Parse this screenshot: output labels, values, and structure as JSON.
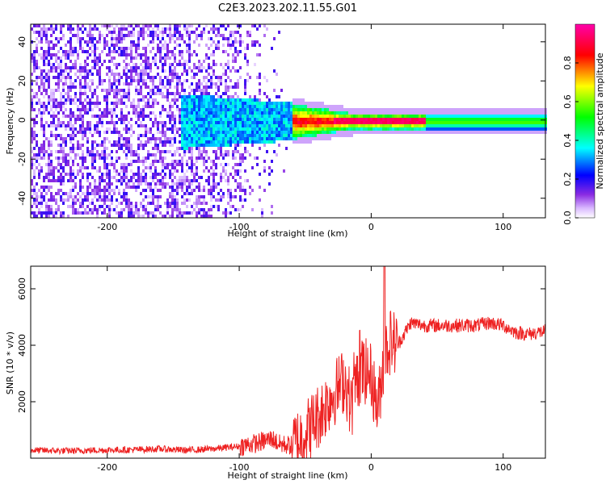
{
  "title": "C2E3.2023.202.11.55.G01",
  "chart_data": [
    {
      "type": "heatmap",
      "xlabel": "Height of straight line (km)",
      "ylabel": "Frequency (Hz)",
      "xlim": [
        -258,
        132
      ],
      "ylim": [
        -50,
        49
      ],
      "xticks": [
        -200,
        -100,
        0,
        100
      ],
      "yticks": [
        -40,
        -20,
        0,
        20,
        40
      ],
      "colorbar": {
        "label": "Normalized spectral amplitude",
        "range": [
          0,
          1
        ],
        "ticks": [
          0.0,
          0.2,
          0.4,
          0.6,
          0.8
        ],
        "colors": [
          "#ffffff",
          "#8a2be2",
          "#0000ff",
          "#00ffff",
          "#00ff00",
          "#ffff00",
          "#ff0000",
          "#ff00ff"
        ]
      },
      "features": {
        "scatter_region_x": [
          -258,
          -60
        ],
        "spread_x": [
          -140,
          -15
        ],
        "band_center_freq": 0,
        "band_start_x": -60,
        "peak_region_x": [
          -30,
          40
        ],
        "peak_amplitude": 0.9
      }
    },
    {
      "type": "line",
      "xlabel": "Height of straight line (km)",
      "ylabel": "SNR (10 * v/v)",
      "xlim": [
        -258,
        132
      ],
      "ylim": [
        0,
        6800
      ],
      "xticks": [
        -200,
        -100,
        0,
        100
      ],
      "yticks": [
        2000,
        4000,
        6000
      ],
      "color": "#ee2222",
      "series": [
        {
          "x": [
            -258,
            -230,
            -200,
            -180,
            -160,
            -140,
            -120,
            -100,
            -85,
            -75,
            -70,
            -60,
            -50,
            -40,
            -30,
            -20,
            -15,
            -10,
            -5,
            0,
            5,
            10,
            15,
            20,
            25,
            30,
            40,
            60,
            80,
            90,
            100,
            110,
            120,
            132
          ],
          "y": [
            280,
            260,
            290,
            300,
            330,
            280,
            330,
            420,
            550,
            700,
            500,
            450,
            900,
            1500,
            2200,
            2800,
            1800,
            3000,
            3100,
            2900,
            1700,
            3700,
            4200,
            4000,
            4400,
            4800,
            4700,
            4700,
            4700,
            4800,
            4700,
            4450,
            4400,
            4500
          ]
        }
      ]
    }
  ]
}
